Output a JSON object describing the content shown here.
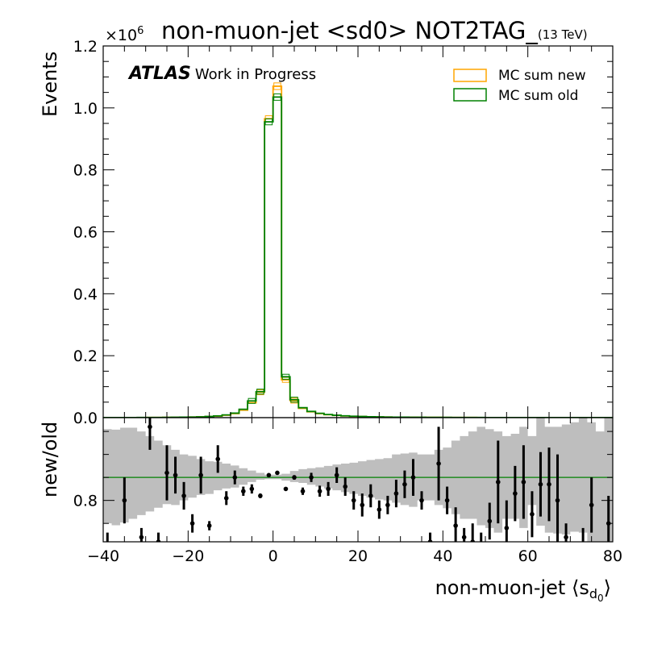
{
  "chart_data": {
    "type": "histogram-with-ratio",
    "title": "non-muon-jet <sd0> NOT2TAG_",
    "title_suffix": "(13 TeV)",
    "atlas_label": "ATLAS",
    "atlas_sublabel": "Work in Progress",
    "xlabel_main": "non-muon-jet ⟨s",
    "xlabel_sub": "d",
    "xlabel_subsub": "0",
    "xlabel_end": "⟩",
    "ylabel": "Events",
    "ratio_ylabel": "new/old",
    "y_exponent_label": "×10",
    "y_exponent": "6",
    "xlim": [
      -40,
      80
    ],
    "ylim": [
      0,
      1.2
    ],
    "ratio_ylim": [
      0.71,
      0.98
    ],
    "x_ticks": [
      -40,
      -20,
      0,
      20,
      40,
      60,
      80
    ],
    "x_tick_labels": [
      "−40",
      "−20",
      "0",
      "20",
      "40",
      "60",
      "80"
    ],
    "y_ticks": [
      0.0,
      0.2,
      0.4,
      0.6,
      0.8,
      1.0,
      1.2
    ],
    "y_tick_labels": [
      "0.0",
      "0.2",
      "0.4",
      "0.6",
      "0.8",
      "1.0",
      "1.2"
    ],
    "ratio_y_ticks": [
      0.8
    ],
    "ratio_y_tick_labels": [
      "0.8"
    ],
    "ratio_reference": 0.85,
    "legend_position": "top-right",
    "bin_width": 2,
    "bin_centers": [
      -39,
      -37,
      -35,
      -33,
      -31,
      -29,
      -27,
      -25,
      -23,
      -21,
      -19,
      -17,
      -15,
      -13,
      -11,
      -9,
      -7,
      -5,
      -3,
      -1,
      1,
      3,
      5,
      7,
      9,
      11,
      13,
      15,
      17,
      19,
      21,
      23,
      25,
      27,
      29,
      31,
      33,
      35,
      37,
      39,
      41,
      43,
      45,
      47,
      49,
      51,
      53,
      55,
      57,
      59,
      61,
      63,
      65,
      67,
      69,
      71,
      73,
      75,
      77,
      79
    ],
    "series": [
      {
        "name": "MC sum new",
        "color": "#ffa500",
        "values": [
          0.0002,
          0.0002,
          0.0003,
          0.0003,
          0.0004,
          0.0005,
          0.0006,
          0.0008,
          0.001,
          0.0013,
          0.0018,
          0.0025,
          0.0035,
          0.005,
          0.008,
          0.013,
          0.024,
          0.048,
          0.082,
          0.965,
          1.07,
          0.122,
          0.055,
          0.03,
          0.019,
          0.013,
          0.0095,
          0.0072,
          0.0055,
          0.0043,
          0.0035,
          0.0028,
          0.0023,
          0.0019,
          0.0016,
          0.0014,
          0.0012,
          0.001,
          0.0009,
          0.0008,
          0.0007,
          0.0006,
          0.0005,
          0.00045,
          0.0004,
          0.00035,
          0.0003,
          0.00028,
          0.00025,
          0.00022,
          0.0002,
          0.00018,
          0.00016,
          0.00015,
          0.00014,
          0.00013,
          0.00012,
          0.00011,
          0.0001,
          0.0001
        ]
      },
      {
        "name": "MC sum old",
        "color": "#008000",
        "values": [
          0.00022,
          0.00023,
          0.00033,
          0.00033,
          0.00044,
          0.00055,
          0.00066,
          0.00088,
          0.0011,
          0.0014,
          0.002,
          0.0027,
          0.0038,
          0.0055,
          0.0088,
          0.0145,
          0.027,
          0.054,
          0.084,
          0.955,
          1.035,
          0.132,
          0.058,
          0.032,
          0.02,
          0.014,
          0.0101,
          0.0077,
          0.0059,
          0.0046,
          0.0038,
          0.003,
          0.0025,
          0.002,
          0.0017,
          0.0015,
          0.0013,
          0.0011,
          0.00097,
          0.00086,
          0.00076,
          0.00065,
          0.00054,
          0.00049,
          0.00043,
          0.00038,
          0.00033,
          0.0003,
          0.00027,
          0.00024,
          0.00022,
          0.0002,
          0.00017,
          0.00016,
          0.00015,
          0.00014,
          0.00013,
          0.00012,
          0.00011,
          0.00011
        ]
      }
    ],
    "ratio_band": {
      "color": "#bebebe",
      "low": [
        0.75,
        0.746,
        0.752,
        0.76,
        0.768,
        0.776,
        0.784,
        0.792,
        0.79,
        0.8,
        0.806,
        0.812,
        0.814,
        0.822,
        0.826,
        0.828,
        0.834,
        0.84,
        0.845,
        0.846,
        0.846,
        0.843,
        0.84,
        0.838,
        0.834,
        0.83,
        0.826,
        0.822,
        0.818,
        0.814,
        0.81,
        0.806,
        0.802,
        0.8,
        0.795,
        0.79,
        0.786,
        0.8,
        0.8,
        0.79,
        0.783,
        0.77,
        0.76,
        0.76,
        0.746,
        0.74,
        0.73,
        0.76,
        0.76,
        0.74,
        0.79,
        0.745,
        0.73,
        0.728,
        0.726,
        0.732,
        0.73,
        0.71,
        0.71,
        0.71
      ],
      "high": [
        0.955,
        0.954,
        0.958,
        0.958,
        0.95,
        0.94,
        0.93,
        0.92,
        0.91,
        0.9,
        0.897,
        0.89,
        0.885,
        0.884,
        0.88,
        0.876,
        0.87,
        0.865,
        0.86,
        0.856,
        0.856,
        0.858,
        0.864,
        0.868,
        0.87,
        0.872,
        0.875,
        0.878,
        0.88,
        0.882,
        0.885,
        0.888,
        0.89,
        0.892,
        0.9,
        0.902,
        0.904,
        0.9,
        0.9,
        0.91,
        0.915,
        0.93,
        0.94,
        0.95,
        0.96,
        0.955,
        0.95,
        0.94,
        0.945,
        0.96,
        0.94,
        0.98,
        0.96,
        0.96,
        0.965,
        0.97,
        0.98,
        0.97,
        0.95,
        0.98
      ]
    },
    "ratio_points": [
      {
        "x": -39,
        "y": 0.69,
        "err": 0.04
      },
      {
        "x": -35,
        "y": 0.8,
        "err": 0.05
      },
      {
        "x": -31,
        "y": 0.72,
        "err": 0.02
      },
      {
        "x": -29,
        "y": 0.96,
        "err": 0.05
      },
      {
        "x": -27,
        "y": 0.71,
        "err": 0.02
      },
      {
        "x": -25,
        "y": 0.86,
        "err": 0.06
      },
      {
        "x": -23,
        "y": 0.855,
        "err": 0.04
      },
      {
        "x": -21,
        "y": 0.81,
        "err": 0.03
      },
      {
        "x": -19,
        "y": 0.75,
        "err": 0.02
      },
      {
        "x": -17,
        "y": 0.855,
        "err": 0.04
      },
      {
        "x": -15,
        "y": 0.745,
        "err": 0.01
      },
      {
        "x": -13,
        "y": 0.89,
        "err": 0.03
      },
      {
        "x": -11,
        "y": 0.805,
        "err": 0.015
      },
      {
        "x": -9,
        "y": 0.85,
        "err": 0.015
      },
      {
        "x": -7,
        "y": 0.82,
        "err": 0.01
      },
      {
        "x": -5,
        "y": 0.825,
        "err": 0.01
      },
      {
        "x": -3,
        "y": 0.81,
        "err": 0.005
      },
      {
        "x": -1,
        "y": 0.855,
        "err": 0.002
      },
      {
        "x": 1,
        "y": 0.86,
        "err": 0.002
      },
      {
        "x": 3,
        "y": 0.825,
        "err": 0.003
      },
      {
        "x": 5,
        "y": 0.85,
        "err": 0.005
      },
      {
        "x": 7,
        "y": 0.82,
        "err": 0.008
      },
      {
        "x": 9,
        "y": 0.85,
        "err": 0.01
      },
      {
        "x": 11,
        "y": 0.82,
        "err": 0.012
      },
      {
        "x": 13,
        "y": 0.825,
        "err": 0.015
      },
      {
        "x": 15,
        "y": 0.855,
        "err": 0.017
      },
      {
        "x": 17,
        "y": 0.83,
        "err": 0.02
      },
      {
        "x": 19,
        "y": 0.8,
        "err": 0.02
      },
      {
        "x": 21,
        "y": 0.79,
        "err": 0.025
      },
      {
        "x": 23,
        "y": 0.81,
        "err": 0.025
      },
      {
        "x": 25,
        "y": 0.78,
        "err": 0.02
      },
      {
        "x": 27,
        "y": 0.79,
        "err": 0.02
      },
      {
        "x": 29,
        "y": 0.815,
        "err": 0.03
      },
      {
        "x": 31,
        "y": 0.835,
        "err": 0.03
      },
      {
        "x": 33,
        "y": 0.85,
        "err": 0.04
      },
      {
        "x": 35,
        "y": 0.8,
        "err": 0.02
      },
      {
        "x": 37,
        "y": 0.71,
        "err": 0.02
      },
      {
        "x": 39,
        "y": 0.88,
        "err": 0.08
      },
      {
        "x": 41,
        "y": 0.8,
        "err": 0.03
      },
      {
        "x": 43,
        "y": 0.745,
        "err": 0.04
      },
      {
        "x": 45,
        "y": 0.72,
        "err": 0.02
      },
      {
        "x": 47,
        "y": 0.71,
        "err": 0.04
      },
      {
        "x": 49,
        "y": 0.7,
        "err": 0.03
      },
      {
        "x": 51,
        "y": 0.755,
        "err": 0.04
      },
      {
        "x": 53,
        "y": 0.84,
        "err": 0.09
      },
      {
        "x": 55,
        "y": 0.74,
        "err": 0.06
      },
      {
        "x": 57,
        "y": 0.815,
        "err": 0.06
      },
      {
        "x": 59,
        "y": 0.84,
        "err": 0.08
      },
      {
        "x": 61,
        "y": 0.77,
        "err": 0.05
      },
      {
        "x": 63,
        "y": 0.835,
        "err": 0.07
      },
      {
        "x": 65,
        "y": 0.835,
        "err": 0.08
      },
      {
        "x": 67,
        "y": 0.8,
        "err": 0.1
      },
      {
        "x": 69,
        "y": 0.72,
        "err": 0.03
      },
      {
        "x": 73,
        "y": 0.69,
        "err": 0.05
      },
      {
        "x": 75,
        "y": 0.79,
        "err": 0.06
      },
      {
        "x": 77,
        "y": 0.66,
        "err": 0.05
      },
      {
        "x": 79,
        "y": 0.75,
        "err": 0.06
      }
    ]
  }
}
